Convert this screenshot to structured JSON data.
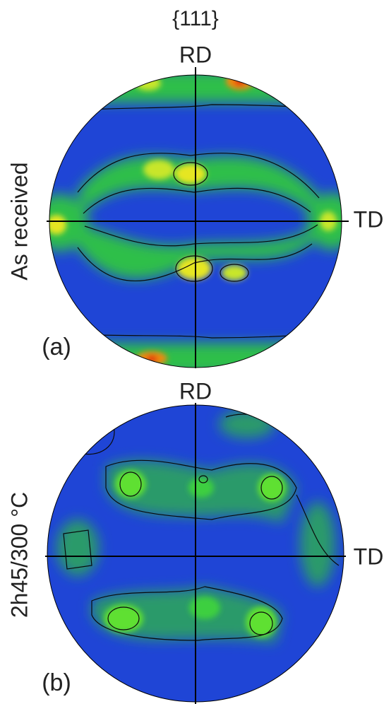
{
  "title": "{111}",
  "panels": [
    {
      "label": "(a)",
      "condition": "As received",
      "rd": "RD",
      "td": "TD"
    },
    {
      "label": "(b)",
      "condition": "2h45/300 °C",
      "rd": "RD",
      "td": "TD"
    }
  ]
}
